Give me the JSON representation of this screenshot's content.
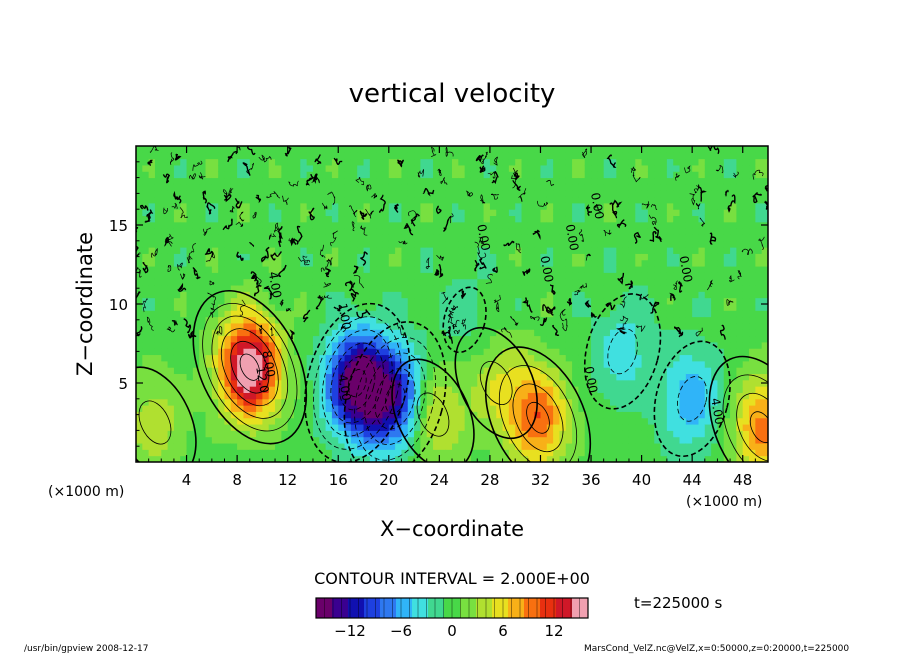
{
  "chart_data": {
    "type": "heatmap",
    "title": "vertical velocity",
    "xlabel": "X−coordinate",
    "ylabel": "Z−coordinate",
    "x_unit_left": "(×1000 m)",
    "x_unit_right": "(×1000 m)",
    "xlim": [
      0,
      50
    ],
    "ylim": [
      0,
      20
    ],
    "x_ticks": [
      4,
      8,
      12,
      16,
      20,
      24,
      28,
      32,
      36,
      40,
      44,
      48
    ],
    "y_ticks": [
      5,
      10,
      15
    ],
    "contour_interval_label": "CONTOUR INTERVAL = 2.000E+00",
    "time_label": "t=225000 s",
    "colorbar": {
      "range": [
        -16,
        16
      ],
      "ticks": [
        -12,
        -6,
        0,
        6,
        12
      ],
      "tick_labels": [
        "−12",
        "−6",
        "0",
        "6",
        "12"
      ],
      "colors": [
        "#6a006a",
        "#3a0090",
        "#1010b0",
        "#1e40e0",
        "#2e78f0",
        "#30b4f8",
        "#40e0e0",
        "#40d890",
        "#48d848",
        "#78e040",
        "#b0e030",
        "#e8e020",
        "#f8b018",
        "#f87010",
        "#e83010",
        "#d01828",
        "#f0a0b0"
      ]
    },
    "features": [
      {
        "x": 9,
        "z": 6,
        "amp": 17
      },
      {
        "x": 17.5,
        "z": 5,
        "amp": -16
      },
      {
        "x": 20.5,
        "z": 4,
        "amp": -12
      },
      {
        "x": 31.8,
        "z": 2.8,
        "amp": 10
      },
      {
        "x": 23.5,
        "z": 3,
        "amp": 6
      },
      {
        "x": 28.5,
        "z": 5,
        "amp": 4
      },
      {
        "x": 49.5,
        "z": 2.2,
        "amp": 9
      },
      {
        "x": 1.5,
        "z": 2.5,
        "amp": 4
      },
      {
        "x": 44,
        "z": 4,
        "amp": -6
      },
      {
        "x": 38.5,
        "z": 7,
        "amp": -4
      },
      {
        "x": 26,
        "z": 9,
        "amp": -2
      }
    ],
    "contour_labels": [
      "4.00",
      "1.00",
      "8.00",
      "12.0",
      "4.00",
      "0.00",
      "4.00",
      "0.00",
      "0.00",
      "0.00",
      "0.00",
      "0.00"
    ]
  },
  "footer": {
    "left": "/usr/bin/gpview  2008-12-17",
    "right": "MarsCond_VelZ.nc@VelZ,x=0:50000,z=0:20000,t=225000"
  }
}
